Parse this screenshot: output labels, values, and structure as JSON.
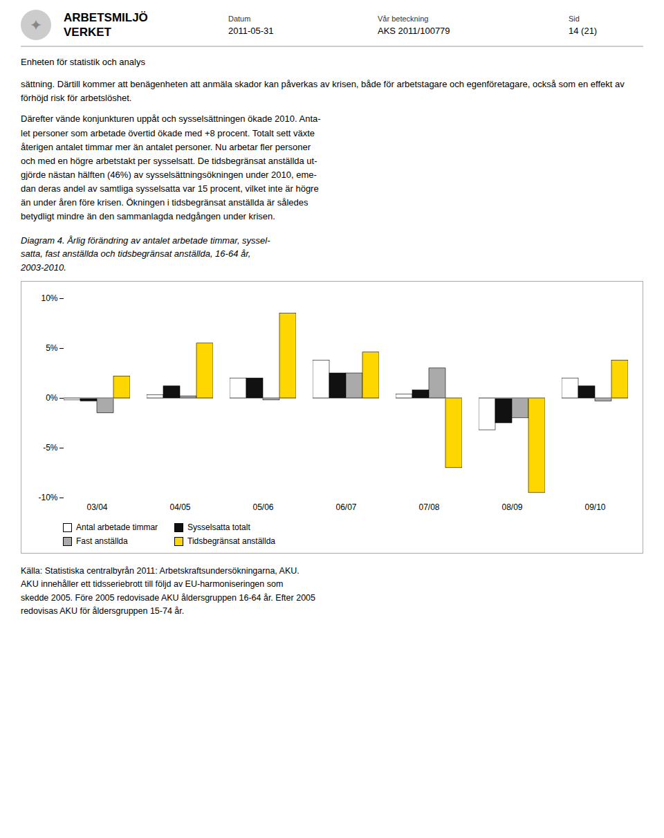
{
  "chart_data": {
    "type": "bar",
    "title": "Diagram 4. Årlig förändring av antalet arbetade timmar, syssel-\nsatta, fast anställda och tidsbegränsat anställda, 16-64 år,\n2003-2010.",
    "categories": [
      "03/04",
      "04/05",
      "05/06",
      "06/07",
      "07/08",
      "08/09",
      "09/10"
    ],
    "series": [
      {
        "name": "Antal arbetade timmar",
        "color": "#ffffff",
        "values": [
          -0.2,
          0.3,
          2.0,
          3.8,
          0.4,
          -3.2,
          2.0
        ]
      },
      {
        "name": "Sysselsatta totalt",
        "color": "#111111",
        "values": [
          -0.3,
          1.2,
          2.0,
          2.5,
          0.8,
          -2.5,
          1.2
        ]
      },
      {
        "name": "Fast anställda",
        "color": "#aaaaaa",
        "values": [
          -1.5,
          0.2,
          -0.2,
          2.5,
          3.0,
          -2.0,
          -0.3
        ]
      },
      {
        "name": "Tidsbegränsat anställda",
        "color": "#FFD700",
        "values": [
          2.2,
          5.5,
          8.5,
          4.6,
          -7.0,
          -9.5,
          3.8
        ]
      }
    ],
    "ylim": [
      -10,
      10
    ],
    "yticks": [
      {
        "value": -10,
        "label": "-10%"
      },
      {
        "value": -5,
        "label": "-5%"
      },
      {
        "value": 0,
        "label": "0%"
      },
      {
        "value": 5,
        "label": "5%"
      },
      {
        "value": 10,
        "label": "10%"
      }
    ],
    "grid": false,
    "legend": "bottom",
    "annotations": [
      "✦",
      "ARBETSMILJÖ",
      "VERKET",
      "Datum",
      "2011-05-31",
      "Vår beteckning",
      "AKS 2011/100779",
      "Sid",
      "14 (21)",
      "Enheten för statistik och analys",
      "sättning. Därtill kommer att benägenheten att anmäla skador kan påverkas av krisen, både för arbetstagare och egenföretagare, också som en effekt av förhöjd risk för arbetslöshet.",
      "Därefter vände konjunkturen uppåt och sysselsättningen ökade 2010. Anta-\nlet personer som arbetade övertid ökade med +8 procent. Totalt sett växte\nåterigen antalet timmar mer än antalet personer. Nu arbetar fler personer\noch med en högre arbetstakt per sysselsatt. De tidsbegränsat anställda ut-\ngjörde nästan hälften (46%) av sysselsättningsökningen under 2010, eme-\ndan deras andel av samtliga sysselsatta var 15 procent, vilket inte är högre\nän under åren före krisen. Ökningen i tidsbegränsat anställda är således\nbetydligt mindre än den sammanlagda nedgången under krisen.",
      "Källa: Statistiska centralbyrån 2011: Arbetskraftsundersökningarna, AKU.\nAKU innehåller ett tidsseriebrott till följd av EU-harmoniseringen som\nskedde 2005. Före 2005 redovisade AKU åldersgruppen 16-64 år. Efter 2005\nredovisas AKU för åldersgruppen 15-74 år."
    ]
  }
}
